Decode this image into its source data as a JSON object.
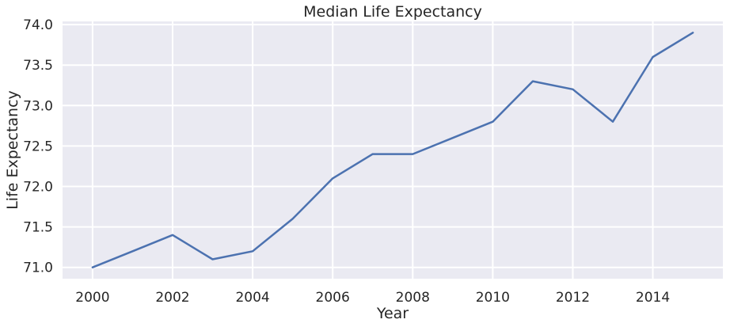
{
  "chart_data": {
    "type": "line",
    "title": "Median Life Expectancy",
    "xlabel": "Year",
    "ylabel": "Life Expectancy",
    "x": [
      2000,
      2001,
      2002,
      2003,
      2004,
      2005,
      2006,
      2007,
      2008,
      2009,
      2010,
      2011,
      2012,
      2013,
      2014,
      2015
    ],
    "series": [
      {
        "values": [
          71.0,
          71.2,
          71.4,
          71.1,
          71.2,
          71.6,
          72.1,
          72.4,
          72.4,
          72.6,
          72.8,
          73.3,
          73.2,
          72.8,
          73.6,
          73.9
        ],
        "color": "#4c72b0"
      }
    ],
    "xlim": [
      1999.25,
      2015.75
    ],
    "ylim": [
      70.86,
      74.04
    ],
    "xticks": [
      2000,
      2002,
      2004,
      2006,
      2008,
      2010,
      2012,
      2014
    ],
    "yticks": [
      "71.0",
      "71.5",
      "72.0",
      "72.5",
      "73.0",
      "73.5",
      "74.0"
    ],
    "grid": true,
    "background": "#eaeaf2",
    "grid_color": "#ffffff"
  }
}
